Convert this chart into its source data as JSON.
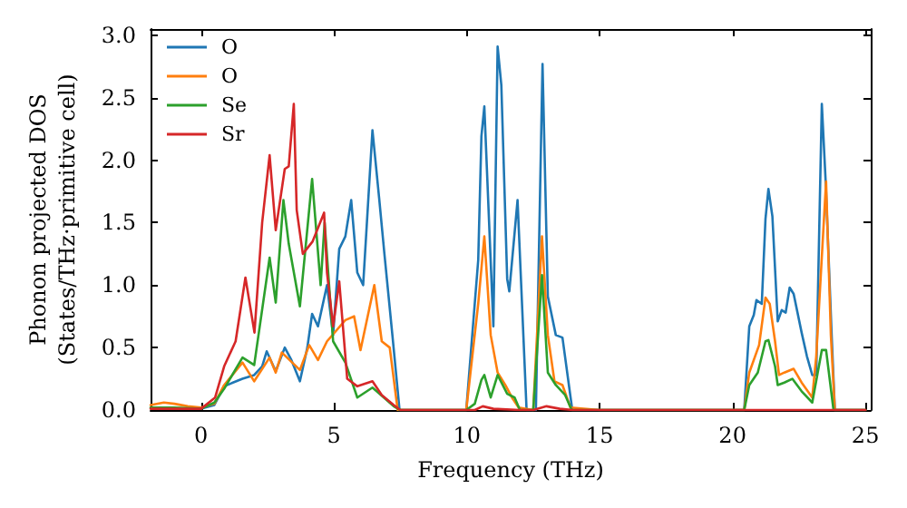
{
  "chart_data": {
    "type": "line",
    "xlabel": "Frequency (THz)",
    "ylabel": "Phonon projected DOS\n(States/THz·primitive cell)",
    "xlim": [
      -1.9,
      25.2
    ],
    "xticks": [
      0,
      5,
      10,
      15,
      20,
      25
    ],
    "ylim": [
      0,
      3.05
    ],
    "yticks": [
      {
        "value": 0,
        "label": "0.0"
      },
      {
        "value": 0.5,
        "label": "0.5"
      },
      {
        "value": 1,
        "label": "1.0"
      },
      {
        "value": 1.5,
        "label": "1.5"
      },
      {
        "value": 2,
        "label": "2.0"
      },
      {
        "value": 2.5,
        "label": "2.5"
      },
      {
        "value": 3,
        "label": "3.0"
      }
    ],
    "grid": false,
    "legend": "top left",
    "marker": "none",
    "line_style": "solid",
    "series": [
      {
        "name": "O",
        "color": "#1f77b4",
        "x": [
          -0.5,
          0,
          0.5,
          0.87,
          1.2,
          1.56,
          2.0,
          2.3,
          2.47,
          2.81,
          3.15,
          3.4,
          3.72,
          4.0,
          4.18,
          4.4,
          4.74,
          4.97,
          5.2,
          5.43,
          5.65,
          5.88,
          6.1,
          6.45,
          6.7,
          6.9,
          7.2,
          7.47,
          8,
          9,
          9.98,
          10.43,
          10.55,
          10.66,
          11.0,
          11.16,
          11.3,
          11.52,
          11.6,
          11.91,
          12.25,
          12.6,
          12.85,
          13.05,
          13.35,
          13.6,
          13.97,
          15,
          18,
          20.44,
          20.63,
          20.8,
          20.9,
          21.1,
          21.24,
          21.35,
          21.5,
          21.7,
          21.85,
          22.0,
          22.15,
          22.3,
          22.6,
          22.8,
          23.0,
          23.15,
          23.36,
          23.5,
          23.73,
          23.85,
          24.5,
          25
        ],
        "values": [
          0.01,
          0.01,
          0.04,
          0.19,
          0.22,
          0.25,
          0.28,
          0.35,
          0.47,
          0.31,
          0.5,
          0.4,
          0.23,
          0.5,
          0.77,
          0.67,
          1.0,
          0.6,
          1.29,
          1.39,
          1.68,
          1.1,
          1.0,
          2.24,
          1.7,
          1.25,
          0.6,
          0,
          0,
          0,
          0,
          1.2,
          2.19,
          2.43,
          0.67,
          2.91,
          2.6,
          1.05,
          0.95,
          1.68,
          0,
          0,
          2.77,
          0.91,
          0.6,
          0.58,
          0,
          0,
          0,
          0,
          0.67,
          0.76,
          0.88,
          0.85,
          1.53,
          1.77,
          1.55,
          0.71,
          0.8,
          0.78,
          0.98,
          0.93,
          0.62,
          0.43,
          0.28,
          0.28,
          2.45,
          1.85,
          0.6,
          0,
          0,
          0
        ]
      },
      {
        "name": "O",
        "color": "#ff7f0e",
        "x": [
          -1.9,
          -1.4,
          -1,
          -0.5,
          0,
          0.5,
          0.87,
          1.56,
          2.0,
          2.58,
          2.81,
          3.04,
          3.72,
          4.07,
          4.4,
          4.74,
          5.43,
          5.76,
          6.0,
          6.52,
          6.8,
          7.1,
          7.4,
          9,
          9.98,
          10.43,
          10.66,
          10.9,
          11.16,
          11.45,
          11.7,
          11.95,
          12.5,
          12.83,
          13.05,
          13.3,
          13.6,
          13.9,
          15,
          20.44,
          20.63,
          21.0,
          21.24,
          21.4,
          21.6,
          21.75,
          21.95,
          22.3,
          22.6,
          23.0,
          23.15,
          23.52,
          23.7,
          23.85,
          25
        ],
        "values": [
          0.04,
          0.06,
          0.05,
          0.03,
          0.02,
          0.05,
          0.2,
          0.38,
          0.23,
          0.42,
          0.3,
          0.46,
          0.32,
          0.52,
          0.4,
          0.55,
          0.72,
          0.75,
          0.48,
          1.0,
          0.55,
          0.5,
          0,
          0,
          0,
          0.85,
          1.39,
          0.6,
          0.3,
          0.2,
          0.1,
          0.02,
          0,
          1.39,
          0.6,
          0.23,
          0.2,
          0.02,
          0,
          0,
          0.3,
          0.52,
          0.9,
          0.85,
          0.55,
          0.28,
          0.3,
          0.33,
          0.22,
          0.1,
          0.43,
          1.83,
          0.6,
          0,
          0
        ]
      },
      {
        "name": "Se",
        "color": "#2ca02c",
        "x": [
          -1.9,
          -1,
          0,
          0.5,
          0.87,
          1.56,
          2.0,
          2.58,
          2.81,
          3.1,
          3.3,
          3.72,
          4.18,
          4.5,
          4.65,
          4.97,
          5.43,
          5.88,
          6.45,
          7.25,
          7.5,
          9,
          9.98,
          10.3,
          10.55,
          10.66,
          10.9,
          11.16,
          11.52,
          11.8,
          12.0,
          12.5,
          12.83,
          13.05,
          13.35,
          13.7,
          13.95,
          15,
          20.44,
          20.63,
          20.95,
          21.24,
          21.35,
          21.6,
          21.7,
          21.95,
          22.25,
          22.6,
          23.0,
          23.36,
          23.52,
          23.8,
          25
        ],
        "values": [
          0.02,
          0.02,
          0.01,
          0.06,
          0.17,
          0.42,
          0.36,
          1.22,
          0.86,
          1.68,
          1.33,
          0.83,
          1.85,
          1.0,
          1.5,
          0.55,
          0.38,
          0.1,
          0.18,
          0.03,
          0,
          0,
          0,
          0.05,
          0.24,
          0.28,
          0.1,
          0.28,
          0.13,
          0.1,
          0,
          0,
          1.08,
          0.3,
          0.2,
          0.12,
          0,
          0,
          0,
          0.2,
          0.3,
          0.55,
          0.56,
          0.35,
          0.2,
          0.22,
          0.25,
          0.15,
          0.06,
          0.48,
          0.48,
          0,
          0
        ]
      },
      {
        "name": "Sr",
        "color": "#d62728",
        "x": [
          -1.9,
          -1,
          0,
          0.53,
          0.87,
          1.3,
          1.67,
          2.01,
          2.3,
          2.58,
          2.81,
          3.15,
          3.3,
          3.49,
          3.6,
          3.83,
          4.2,
          4.63,
          4.74,
          4.97,
          5.2,
          5.5,
          5.88,
          6.45,
          6.8,
          7.25,
          7.5,
          9,
          10.3,
          10.6,
          11,
          12,
          12.5,
          13,
          13.5,
          14,
          15,
          25
        ],
        "values": [
          0.01,
          0.01,
          0.01,
          0.1,
          0.35,
          0.55,
          1.06,
          0.62,
          1.5,
          2.04,
          1.44,
          1.93,
          1.95,
          2.45,
          1.6,
          1.25,
          1.35,
          1.58,
          1.1,
          0.67,
          1.03,
          0.25,
          0.19,
          0.23,
          0.12,
          0.04,
          0,
          0,
          0,
          0.03,
          0.01,
          0,
          0,
          0.03,
          0.01,
          0,
          0,
          0
        ]
      }
    ]
  }
}
